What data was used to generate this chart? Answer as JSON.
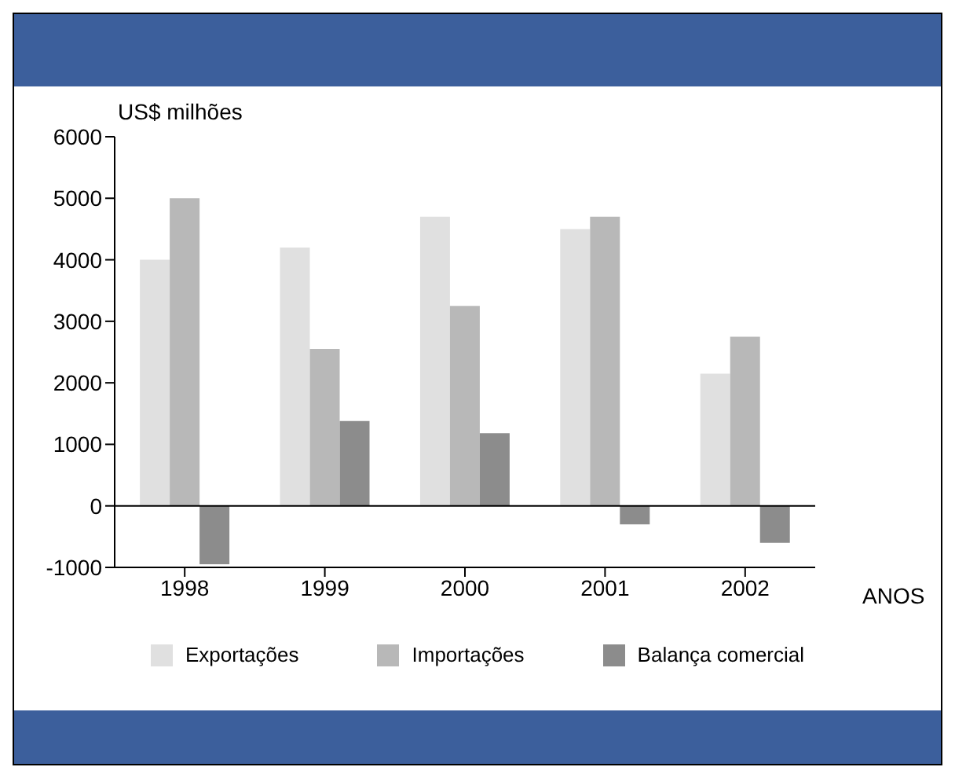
{
  "chart_data": {
    "type": "bar",
    "ylabel": "US$ milhões",
    "xlabel": "ANOS",
    "categories": [
      "1998",
      "1999",
      "2000",
      "2001",
      "2002"
    ],
    "series": [
      {
        "name": "Exportações",
        "color": "#e0e0e0",
        "values": [
          4000,
          4200,
          4700,
          4500,
          2150
        ]
      },
      {
        "name": "Importações",
        "color": "#b8b8b8",
        "values": [
          5000,
          2550,
          3250,
          4700,
          2750
        ]
      },
      {
        "name": "Balança comercial",
        "color": "#8c8c8c",
        "values": [
          -950,
          1380,
          1180,
          -300,
          -600
        ]
      }
    ],
    "ylim": [
      -1000,
      6000
    ],
    "yticks": [
      -1000,
      0,
      1000,
      2000,
      3000,
      4000,
      5000,
      6000
    ],
    "ref_lines": [
      {
        "axis": "y",
        "value": 0
      }
    ],
    "legend": "bottom"
  }
}
